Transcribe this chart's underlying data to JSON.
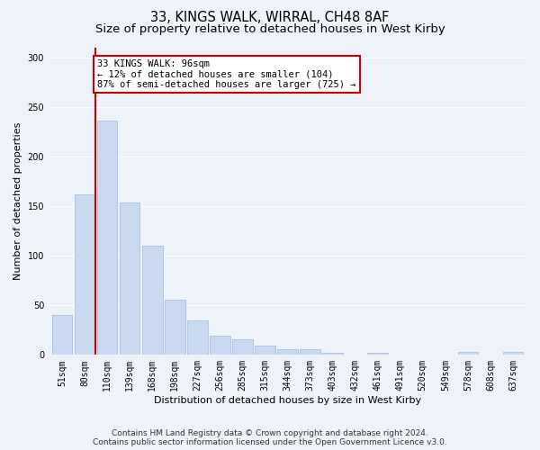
{
  "title": "33, KINGS WALK, WIRRAL, CH48 8AF",
  "subtitle": "Size of property relative to detached houses in West Kirby",
  "xlabel": "Distribution of detached houses by size in West Kirby",
  "ylabel": "Number of detached properties",
  "bin_labels": [
    "51sqm",
    "80sqm",
    "110sqm",
    "139sqm",
    "168sqm",
    "198sqm",
    "227sqm",
    "256sqm",
    "285sqm",
    "315sqm",
    "344sqm",
    "373sqm",
    "403sqm",
    "432sqm",
    "461sqm",
    "491sqm",
    "520sqm",
    "549sqm",
    "578sqm",
    "608sqm",
    "637sqm"
  ],
  "bar_heights": [
    40,
    162,
    236,
    154,
    110,
    56,
    35,
    19,
    16,
    9,
    6,
    6,
    2,
    0,
    2,
    0,
    0,
    0,
    3,
    0,
    3
  ],
  "bar_color": "#c9d9f0",
  "bar_edge_color": "#a8c0e0",
  "vline_color": "#cc0000",
  "annotation_text": "33 KINGS WALK: 96sqm\n← 12% of detached houses are smaller (104)\n87% of semi-detached houses are larger (725) →",
  "annotation_box_color": "#ffffff",
  "annotation_box_edge": "#cc0000",
  "ylim": [
    0,
    310
  ],
  "yticks": [
    0,
    50,
    100,
    150,
    200,
    250,
    300
  ],
  "footer": "Contains HM Land Registry data © Crown copyright and database right 2024.\nContains public sector information licensed under the Open Government Licence v3.0.",
  "bg_color": "#eef2f9",
  "grid_color": "#ffffff",
  "title_fontsize": 10.5,
  "subtitle_fontsize": 9.5,
  "label_fontsize": 8,
  "tick_fontsize": 7,
  "footer_fontsize": 6.5,
  "annotation_fontsize": 7.5
}
